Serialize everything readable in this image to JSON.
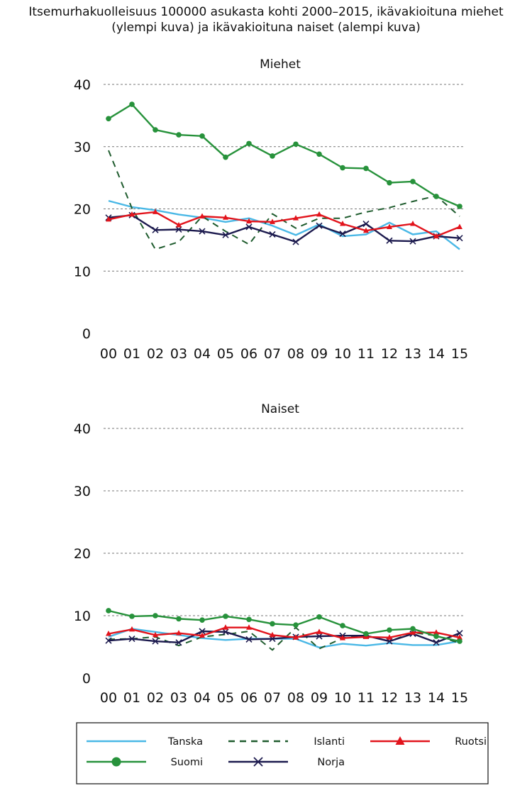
{
  "title_line1": "Itsemurhakuolleisuus 100000 asukasta kohti 2000–2015, ikävakioituna miehet",
  "title_line2": "(ylempi kuva) ja ikävakioituna naiset (alempi kuva)",
  "chart_data": [
    {
      "type": "line",
      "title": "Miehet",
      "categories": [
        "00",
        "01",
        "02",
        "03",
        "04",
        "05",
        "06",
        "07",
        "08",
        "09",
        "10",
        "11",
        "12",
        "13",
        "14",
        "15"
      ],
      "ylim": [
        0,
        40
      ],
      "yticks": [
        0,
        10,
        20,
        30,
        40
      ],
      "grid": true,
      "series": [
        {
          "name": "Tanska",
          "values": [
            21.3,
            20.3,
            19.8,
            19.1,
            18.6,
            17.9,
            18.5,
            17.3,
            15.8,
            17.5,
            15.6,
            15.9,
            17.8,
            15.9,
            16.4,
            13.5
          ]
        },
        {
          "name": "Islanti",
          "values": [
            29.4,
            20.1,
            13.5,
            14.7,
            18.8,
            16.4,
            14.3,
            19.2,
            16.9,
            18.5,
            18.5,
            19.5,
            20.2,
            21.2,
            22.1,
            18.8
          ]
        },
        {
          "name": "Ruotsi",
          "values": [
            18.3,
            19.1,
            19.5,
            17.4,
            18.8,
            18.6,
            18.0,
            17.9,
            18.5,
            19.1,
            17.6,
            16.5,
            17.1,
            17.6,
            15.6,
            17.1
          ]
        },
        {
          "name": "Suomi",
          "values": [
            34.5,
            36.8,
            32.7,
            31.9,
            31.7,
            28.3,
            30.5,
            28.5,
            30.4,
            28.8,
            26.6,
            26.5,
            24.2,
            24.4,
            22.0,
            20.4
          ]
        },
        {
          "name": "Norja",
          "values": [
            18.6,
            19.0,
            16.6,
            16.7,
            16.4,
            15.8,
            17.1,
            15.9,
            14.7,
            17.3,
            16.0,
            17.6,
            14.9,
            14.8,
            15.6,
            15.3
          ]
        }
      ]
    },
    {
      "type": "line",
      "title": "Naiset",
      "categories": [
        "00",
        "01",
        "02",
        "03",
        "04",
        "05",
        "06",
        "07",
        "08",
        "09",
        "10",
        "11",
        "12",
        "13",
        "14",
        "15"
      ],
      "ylim": [
        0,
        40
      ],
      "yticks": [
        0,
        10,
        20,
        30,
        40
      ],
      "grid": true,
      "series": [
        {
          "name": "Tanska",
          "values": [
            6.6,
            7.9,
            7.4,
            6.9,
            6.4,
            6.1,
            6.3,
            6.3,
            6.3,
            4.9,
            5.5,
            5.2,
            5.6,
            5.3,
            5.3,
            5.9
          ]
        },
        {
          "name": "Islanti",
          "values": [
            6.2,
            6.3,
            6.6,
            5.2,
            6.6,
            7.0,
            7.5,
            4.5,
            8.1,
            4.7,
            6.4,
            6.9,
            5.9,
            7.3,
            6.8,
            5.6
          ]
        },
        {
          "name": "Ruotsi",
          "values": [
            7.1,
            7.8,
            6.9,
            7.2,
            6.8,
            8.1,
            8.1,
            6.9,
            6.5,
            7.4,
            6.4,
            6.6,
            6.5,
            7.3,
            7.3,
            6.5
          ]
        },
        {
          "name": "Suomi",
          "values": [
            10.8,
            9.9,
            10.0,
            9.5,
            9.3,
            9.9,
            9.4,
            8.7,
            8.5,
            9.8,
            8.4,
            7.1,
            7.7,
            7.9,
            6.7,
            5.9
          ]
        },
        {
          "name": "Norja",
          "values": [
            6.0,
            6.3,
            5.9,
            5.7,
            7.5,
            7.4,
            6.2,
            6.3,
            6.6,
            6.7,
            6.8,
            6.8,
            5.9,
            7.1,
            5.7,
            7.2
          ]
        }
      ]
    }
  ],
  "legend": {
    "items": [
      {
        "name": "Tanska",
        "color": "#4ab8e6",
        "style": "solid",
        "marker": "none"
      },
      {
        "name": "Islanti",
        "color": "#1f5c2e",
        "style": "dashed",
        "marker": "none"
      },
      {
        "name": "Ruotsi",
        "color": "#e2141c",
        "style": "solid",
        "marker": "triangle"
      },
      {
        "name": "Suomi",
        "color": "#27923b",
        "style": "solid",
        "marker": "circle"
      },
      {
        "name": "Norja",
        "color": "#1c1a4e",
        "style": "solid",
        "marker": "x"
      }
    ]
  },
  "colors": {
    "grid": "#777777",
    "axis_text": "#111111"
  }
}
